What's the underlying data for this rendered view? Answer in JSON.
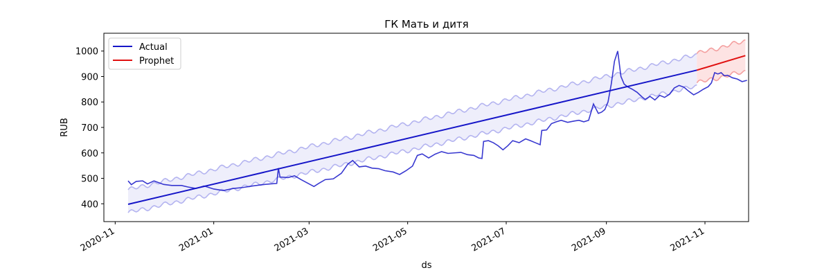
{
  "chart_data": {
    "type": "line",
    "title": "ГК Мать и дитя",
    "xlabel": "ds",
    "ylabel": "RUB",
    "xlim": [
      "2020-10-25",
      "2021-11-28"
    ],
    "ylim": [
      330,
      1070
    ],
    "x_ticks": [
      {
        "date": "2020-11-01",
        "label": "2020-11"
      },
      {
        "date": "2021-01-01",
        "label": "2021-01"
      },
      {
        "date": "2021-03-01",
        "label": "2021-03"
      },
      {
        "date": "2021-05-01",
        "label": "2021-05"
      },
      {
        "date": "2021-07-01",
        "label": "2021-07"
      },
      {
        "date": "2021-09-01",
        "label": "2021-09"
      },
      {
        "date": "2021-11-01",
        "label": "2021-11"
      }
    ],
    "y_ticks": [
      400,
      500,
      600,
      700,
      800,
      900,
      1000
    ],
    "grid": false,
    "legend": {
      "placement": "top-left",
      "entries": [
        "Actual",
        "Prophet"
      ]
    },
    "colors": {
      "actual": "#1515c8",
      "actual_band": "#b4b4f0",
      "actual_band_fill": "#ececfb",
      "prophet": "#e01010",
      "prophet_band": "#f4a0a0",
      "prophet_band_fill": "#fde0e0"
    },
    "series": [
      {
        "name": "Actual",
        "role": "observed",
        "points": [
          [
            "2020-11-09",
            490
          ],
          [
            "2020-11-11",
            475
          ],
          [
            "2020-11-14",
            488
          ],
          [
            "2020-11-18",
            490
          ],
          [
            "2020-11-21",
            478
          ],
          [
            "2020-11-25",
            490
          ],
          [
            "2020-12-01",
            476
          ],
          [
            "2020-12-06",
            472
          ],
          [
            "2020-12-12",
            472
          ],
          [
            "2020-12-16",
            466
          ],
          [
            "2020-12-21",
            460
          ],
          [
            "2020-12-26",
            470
          ],
          [
            "2021-01-01",
            458
          ],
          [
            "2021-01-07",
            452
          ],
          [
            "2021-01-13",
            460
          ],
          [
            "2021-01-19",
            464
          ],
          [
            "2021-01-25",
            470
          ],
          [
            "2021-01-31",
            475
          ],
          [
            "2021-02-05",
            478
          ],
          [
            "2021-02-09",
            480
          ],
          [
            "2021-02-10",
            540
          ],
          [
            "2021-02-11",
            505
          ],
          [
            "2021-02-16",
            503
          ],
          [
            "2021-02-20",
            510
          ],
          [
            "2021-02-24",
            495
          ],
          [
            "2021-03-01",
            478
          ],
          [
            "2021-03-04",
            468
          ],
          [
            "2021-03-07",
            480
          ],
          [
            "2021-03-11",
            495
          ],
          [
            "2021-03-16",
            498
          ],
          [
            "2021-03-21",
            520
          ],
          [
            "2021-03-25",
            556
          ],
          [
            "2021-03-28",
            570
          ],
          [
            "2021-04-01",
            545
          ],
          [
            "2021-04-05",
            548
          ],
          [
            "2021-04-09",
            540
          ],
          [
            "2021-04-13",
            538
          ],
          [
            "2021-04-17",
            530
          ],
          [
            "2021-04-22",
            525
          ],
          [
            "2021-04-26",
            515
          ],
          [
            "2021-04-30",
            530
          ],
          [
            "2021-05-04",
            548
          ],
          [
            "2021-05-07",
            590
          ],
          [
            "2021-05-10",
            596
          ],
          [
            "2021-05-14",
            580
          ],
          [
            "2021-05-18",
            595
          ],
          [
            "2021-05-22",
            605
          ],
          [
            "2021-05-26",
            598
          ],
          [
            "2021-05-30",
            600
          ],
          [
            "2021-06-03",
            602
          ],
          [
            "2021-06-07",
            593
          ],
          [
            "2021-06-11",
            590
          ],
          [
            "2021-06-14",
            580
          ],
          [
            "2021-06-16",
            578
          ],
          [
            "2021-06-17",
            645
          ],
          [
            "2021-06-20",
            648
          ],
          [
            "2021-06-23",
            640
          ],
          [
            "2021-06-26",
            628
          ],
          [
            "2021-06-29",
            612
          ],
          [
            "2021-07-02",
            628
          ],
          [
            "2021-07-05",
            648
          ],
          [
            "2021-07-09",
            640
          ],
          [
            "2021-07-13",
            655
          ],
          [
            "2021-07-16",
            648
          ],
          [
            "2021-07-19",
            640
          ],
          [
            "2021-07-22",
            632
          ],
          [
            "2021-07-23",
            688
          ],
          [
            "2021-07-26",
            690
          ],
          [
            "2021-07-29",
            715
          ],
          [
            "2021-08-01",
            722
          ],
          [
            "2021-08-04",
            728
          ],
          [
            "2021-08-08",
            720
          ],
          [
            "2021-08-12",
            725
          ],
          [
            "2021-08-15",
            728
          ],
          [
            "2021-08-18",
            722
          ],
          [
            "2021-08-21",
            728
          ],
          [
            "2021-08-24",
            792
          ],
          [
            "2021-08-27",
            755
          ],
          [
            "2021-08-29",
            760
          ],
          [
            "2021-08-31",
            770
          ],
          [
            "2021-09-02",
            800
          ],
          [
            "2021-09-04",
            870
          ],
          [
            "2021-09-06",
            960
          ],
          [
            "2021-09-08",
            1000
          ],
          [
            "2021-09-10",
            900
          ],
          [
            "2021-09-12",
            870
          ],
          [
            "2021-09-14",
            860
          ],
          [
            "2021-09-17",
            850
          ],
          [
            "2021-09-20",
            838
          ],
          [
            "2021-09-23",
            820
          ],
          [
            "2021-09-25",
            810
          ],
          [
            "2021-09-28",
            822
          ],
          [
            "2021-10-01",
            808
          ],
          [
            "2021-10-04",
            826
          ],
          [
            "2021-10-07",
            818
          ],
          [
            "2021-10-10",
            830
          ],
          [
            "2021-10-13",
            855
          ],
          [
            "2021-10-16",
            865
          ],
          [
            "2021-10-19",
            858
          ],
          [
            "2021-10-22",
            842
          ],
          [
            "2021-10-25",
            828
          ],
          [
            "2021-10-28",
            838
          ],
          [
            "2021-10-31",
            850
          ],
          [
            "2021-11-03",
            860
          ],
          [
            "2021-11-05",
            875
          ],
          [
            "2021-11-07",
            915
          ],
          [
            "2021-11-09",
            910
          ],
          [
            "2021-11-11",
            915
          ],
          [
            "2021-11-13",
            903
          ],
          [
            "2021-11-15",
            905
          ],
          [
            "2021-11-18",
            895
          ],
          [
            "2021-11-21",
            890
          ],
          [
            "2021-11-24",
            880
          ],
          [
            "2021-11-27",
            885
          ]
        ]
      },
      {
        "name": "Actual fit",
        "role": "fitted",
        "points": [
          [
            "2020-11-09",
            398
          ],
          [
            "2021-10-27",
            925
          ]
        ],
        "band": {
          "lower": [
            [
              "2020-11-09",
              365
            ],
            [
              "2021-10-27",
              862
            ]
          ],
          "upper": [
            [
              "2020-11-09",
              455
            ],
            [
              "2021-10-27",
              985
            ]
          ]
        }
      },
      {
        "name": "Prophet",
        "role": "forecast",
        "points": [
          [
            "2021-10-27",
            925
          ],
          [
            "2021-11-26",
            982
          ]
        ],
        "band": {
          "lower": [
            [
              "2021-10-27",
              875
            ],
            [
              "2021-11-26",
              920
            ]
          ],
          "upper": [
            [
              "2021-10-27",
              990
            ],
            [
              "2021-11-26",
              1040
            ]
          ]
        }
      }
    ]
  }
}
